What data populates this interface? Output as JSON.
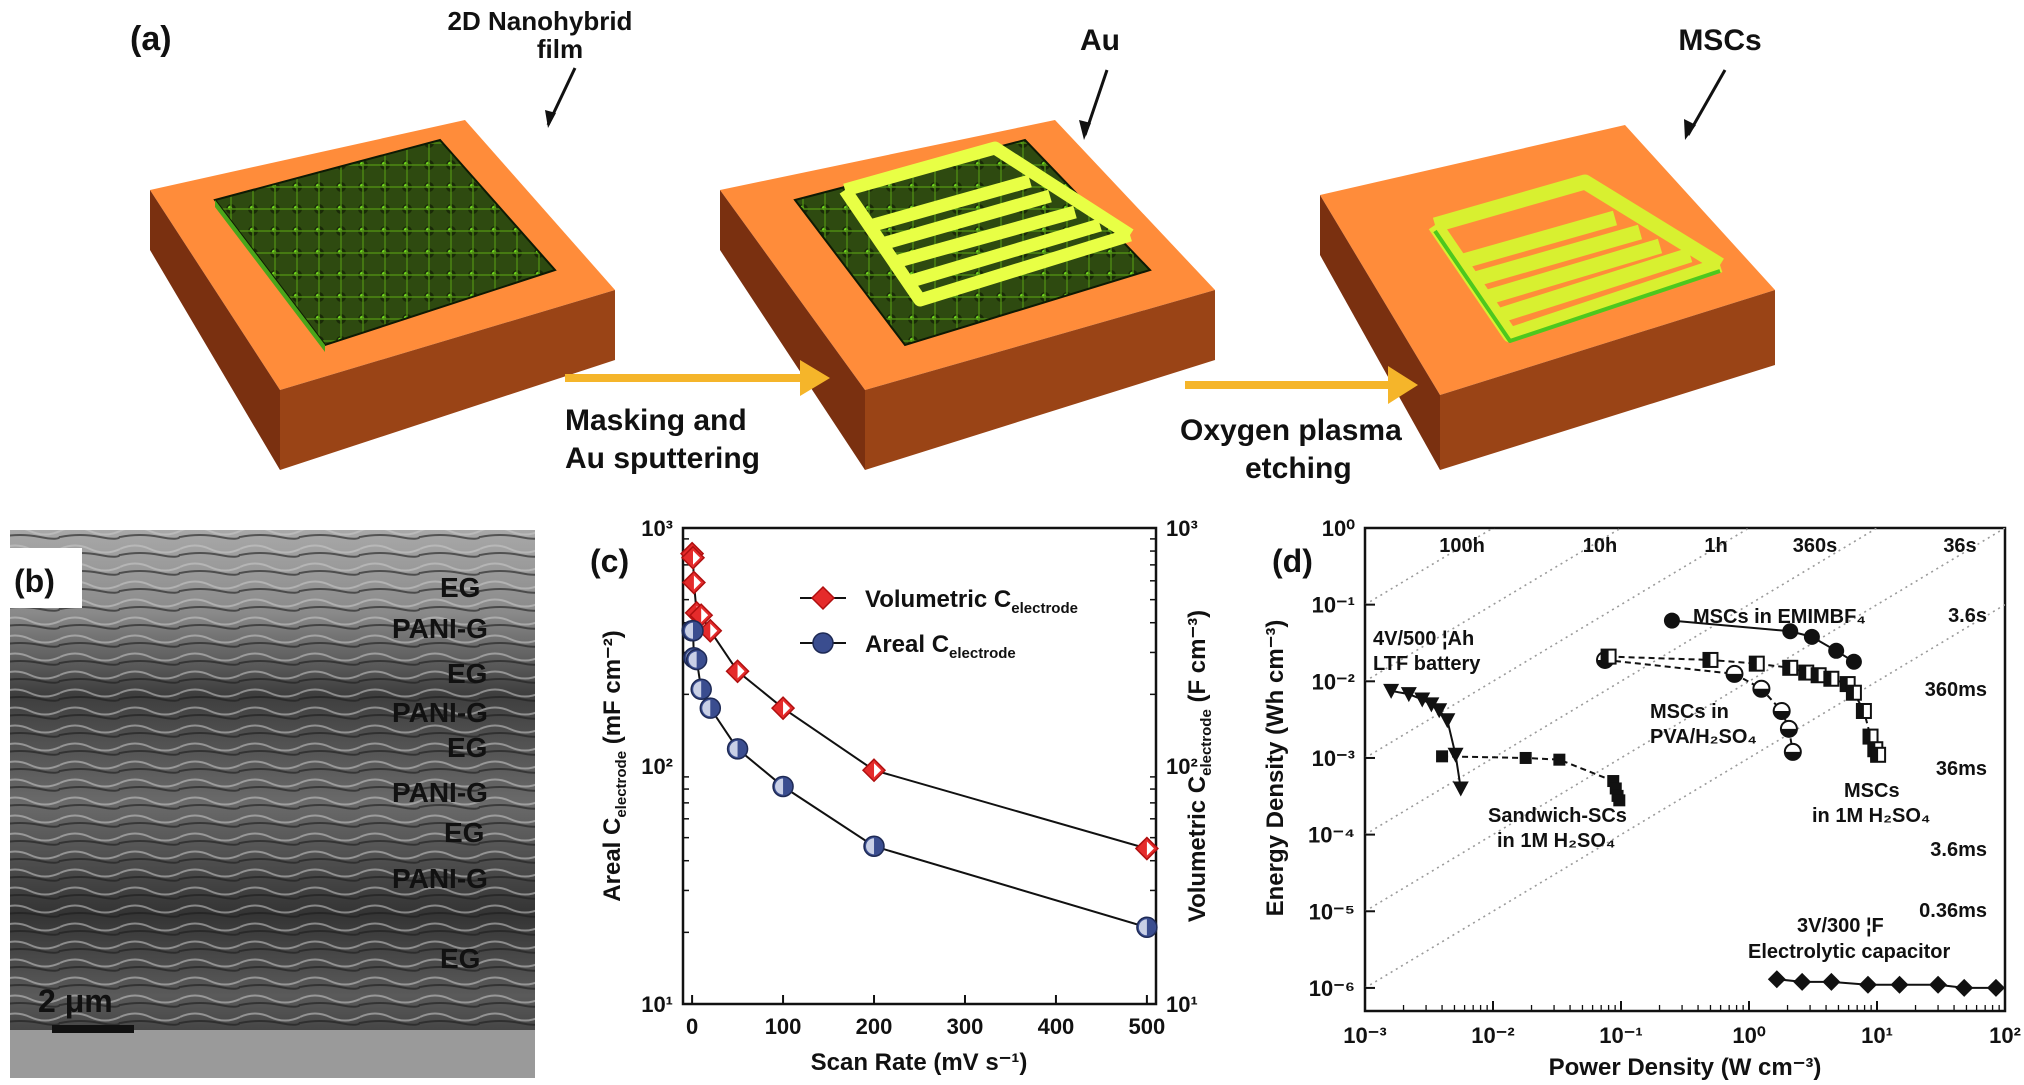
{
  "panel_a": {
    "label": "(a)",
    "film_label_1": "2D Nanohybrid",
    "film_label_2": "film",
    "au_label": "Au",
    "msc_label": "MSCs",
    "step1_line1": "Masking and",
    "step1_line2": "Au sputtering",
    "step2_line1": "Oxygen plasma",
    "step2_line2": "etching",
    "colors": {
      "substrate_top": "#ff8c3a",
      "substrate_side": "#8a3a14",
      "film": "#2d4a12",
      "gold": "#e8ff45",
      "arrow": "#f5b52a"
    }
  },
  "panel_b": {
    "label": "(b)",
    "layers": [
      "EG",
      "PANI-G",
      "EG",
      "PANI-G",
      "EG",
      "PANI-G",
      "EG",
      "PANI-G",
      "EG"
    ],
    "scale_label": "2 μm",
    "colors": {
      "EG": "#e02020",
      "PANI-G": "#22ff22"
    }
  },
  "panel_c": {
    "label": "(c)",
    "chart_data": {
      "type": "scatter",
      "xlabel": "Scan Rate (mV s⁻¹)",
      "ylabel_left": "Areal Celectrode (mF cm⁻²)",
      "ylabel_right": "Volumetric Celectrode (F cm⁻³)",
      "x_ticks": [
        "0",
        "100",
        "200",
        "300",
        "400",
        "500"
      ],
      "y_ticks": [
        "10¹",
        "10²",
        "10³"
      ],
      "xlim": [
        -10,
        510
      ],
      "ylim": [
        10,
        1000
      ],
      "yscale": "log",
      "series": [
        {
          "name": "Volumetric Celectrode",
          "color": "#e52b2b",
          "marker": "diamond",
          "x": [
            0,
            1,
            2,
            5,
            10,
            20,
            50,
            100,
            200,
            500
          ],
          "y": [
            780,
            750,
            590,
            440,
            430,
            370,
            250,
            175,
            96,
            45
          ]
        },
        {
          "name": "Areal Celectrode",
          "color": "#3a4d8f",
          "marker": "circle",
          "x": [
            0,
            1,
            2,
            5,
            10,
            20,
            50,
            100,
            200,
            500
          ],
          "y": [
            370,
            370,
            285,
            280,
            210,
            175,
            118,
            82,
            46,
            21
          ]
        }
      ]
    }
  },
  "panel_d": {
    "label": "(d)",
    "chart_data": {
      "type": "scatter",
      "xlabel": "Power Density (W cm⁻³)",
      "ylabel": "Energy Density (Wh cm⁻³)",
      "x_ticks": [
        "10⁻³",
        "10⁻²",
        "10⁻¹",
        "10⁰",
        "10¹",
        "10²"
      ],
      "y_ticks": [
        "10⁰",
        "10⁻¹",
        "10⁻²",
        "10⁻³",
        "10⁻⁴",
        "10⁻⁵",
        "10⁻⁶"
      ],
      "xscale": "log",
      "yscale": "log",
      "xlim": [
        0.001,
        100
      ],
      "ylim": [
        5e-07,
        1
      ],
      "time_labels_top": [
        "100h",
        "10h",
        "1h",
        "360s",
        "36s"
      ],
      "time_labels_right": [
        "3.6s",
        "360ms",
        "36ms",
        "3.6ms",
        "0.36ms"
      ],
      "annotations": {
        "battery_1": "4V/500 ¦Ah",
        "battery_2": "LTF battery",
        "sandwich_1": "Sandwich-SCs",
        "sandwich_2": "in 1M H₂SO₄",
        "emim": "MSCs in EMIMBF₄",
        "pva_1": "MSCs in",
        "pva_2": "PVA/H₂SO₄",
        "h2so4_1": "MSCs",
        "h2so4_2": "in 1M H₂SO₄",
        "elec_1": "3V/300 ¦F",
        "elec_2": "Electrolytic capacitor"
      },
      "series": [
        {
          "name": "LTF battery",
          "marker": "triangle-down",
          "x": [
            0.0016,
            0.0022,
            0.0028,
            0.0033,
            0.0038,
            0.0044,
            0.0051,
            0.0056
          ],
          "y": [
            0.0075,
            0.0068,
            0.0058,
            0.005,
            0.0042,
            0.0031,
            0.0011,
            0.0004
          ]
        },
        {
          "name": "Sandwich-SCs in 1M H2SO4",
          "marker": "square",
          "x": [
            0.004,
            0.018,
            0.033,
            0.087,
            0.091,
            0.094,
            0.097
          ],
          "y": [
            0.00105,
            0.001,
            0.00095,
            0.0005,
            0.0004,
            0.00032,
            0.00028
          ]
        },
        {
          "name": "MSCs in EMIMBF4",
          "marker": "circle-filled",
          "x": [
            0.25,
            2.1,
            3.1,
            4.8,
            6.6
          ],
          "y": [
            0.062,
            0.045,
            0.038,
            0.025,
            0.018
          ]
        },
        {
          "name": "MSCs in PVA/H2SO4",
          "marker": "circle-half",
          "x": [
            0.075,
            0.77,
            1.25,
            1.8,
            2.05,
            2.2
          ],
          "y": [
            0.019,
            0.0125,
            0.008,
            0.0041,
            0.0024,
            0.0012
          ]
        },
        {
          "name": "MSCs in 1M H2SO4",
          "marker": "square-half",
          "x": [
            0.08,
            0.5,
            1.15,
            2.1,
            2.8,
            3.5,
            4.4,
            5.9,
            6.6,
            7.9,
            8.9,
            9.7,
            10.2
          ],
          "y": [
            0.021,
            0.019,
            0.017,
            0.015,
            0.013,
            0.012,
            0.0108,
            0.0092,
            0.0071,
            0.0041,
            0.0019,
            0.0013,
            0.0011
          ]
        },
        {
          "name": "Electrolytic capacitor",
          "marker": "diamond-filled",
          "x": [
            1.65,
            2.6,
            4.4,
            8.5,
            15,
            30,
            48,
            85
          ],
          "y": [
            1.3e-06,
            1.2e-06,
            1.2e-06,
            1.1e-06,
            1.1e-06,
            1.1e-06,
            1e-06,
            1e-06
          ]
        }
      ]
    }
  }
}
